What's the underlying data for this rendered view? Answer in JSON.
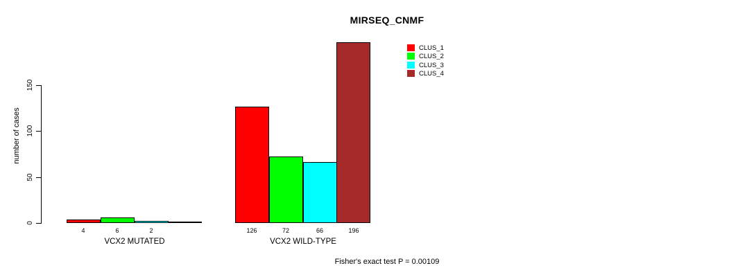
{
  "chart_data": {
    "type": "bar",
    "title": "MIRSEQ_CNMF",
    "ylabel": "number of cases",
    "xlabel": "",
    "ylim": [
      0,
      196
    ],
    "yticks": [
      0,
      50,
      100,
      150
    ],
    "grid": false,
    "legend_position": "top-right",
    "series": [
      {
        "name": "CLUS_1",
        "color": "#ff0000"
      },
      {
        "name": "CLUS_2",
        "color": "#00ff00"
      },
      {
        "name": "CLUS_3",
        "color": "#00ffff"
      },
      {
        "name": "CLUS_4",
        "color": "#a52a2a"
      }
    ],
    "categories": [
      "VCX2 MUTATED",
      "VCX2 WILD-TYPE"
    ],
    "groups": [
      {
        "label": "VCX2 MUTATED",
        "values": [
          4,
          6,
          2,
          0
        ],
        "bar_labels": [
          "4",
          "6",
          "2",
          ""
        ]
      },
      {
        "label": "VCX2 WILD-TYPE",
        "values": [
          126,
          72,
          66,
          196
        ],
        "bar_labels": [
          "126",
          "72",
          "66",
          "196"
        ]
      }
    ],
    "footnote": "Fisher's exact test P = 0.00109"
  }
}
